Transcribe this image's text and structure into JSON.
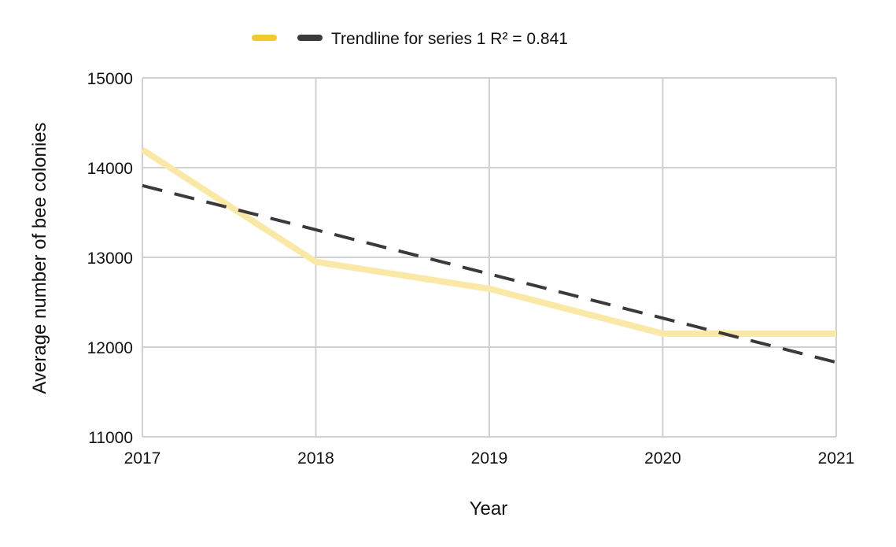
{
  "chart_data": {
    "type": "line",
    "x": [
      2017,
      2018,
      2019,
      2020,
      2021
    ],
    "series": [
      {
        "values": [
          14200,
          12950,
          12650,
          12150,
          12150
        ],
        "color": "#f9e8a6",
        "legend_color": "#f2c929",
        "style": "solid"
      }
    ],
    "trendline": {
      "name": "Trendline for series 1 R² = 0.841",
      "start": [
        2017,
        13800
      ],
      "end": [
        2021,
        11830
      ],
      "color": "#3a3a3a",
      "style": "dashed"
    },
    "xlabel": "Year",
    "ylabel": "Average number of bee colonies",
    "ylim": [
      11000,
      15000
    ],
    "xlim": [
      2017,
      2021
    ],
    "yticks": [
      11000,
      12000,
      13000,
      14000,
      15000
    ],
    "xticks": [
      2017,
      2018,
      2019,
      2020,
      2021
    ],
    "grid": true,
    "legend_position": "top"
  }
}
